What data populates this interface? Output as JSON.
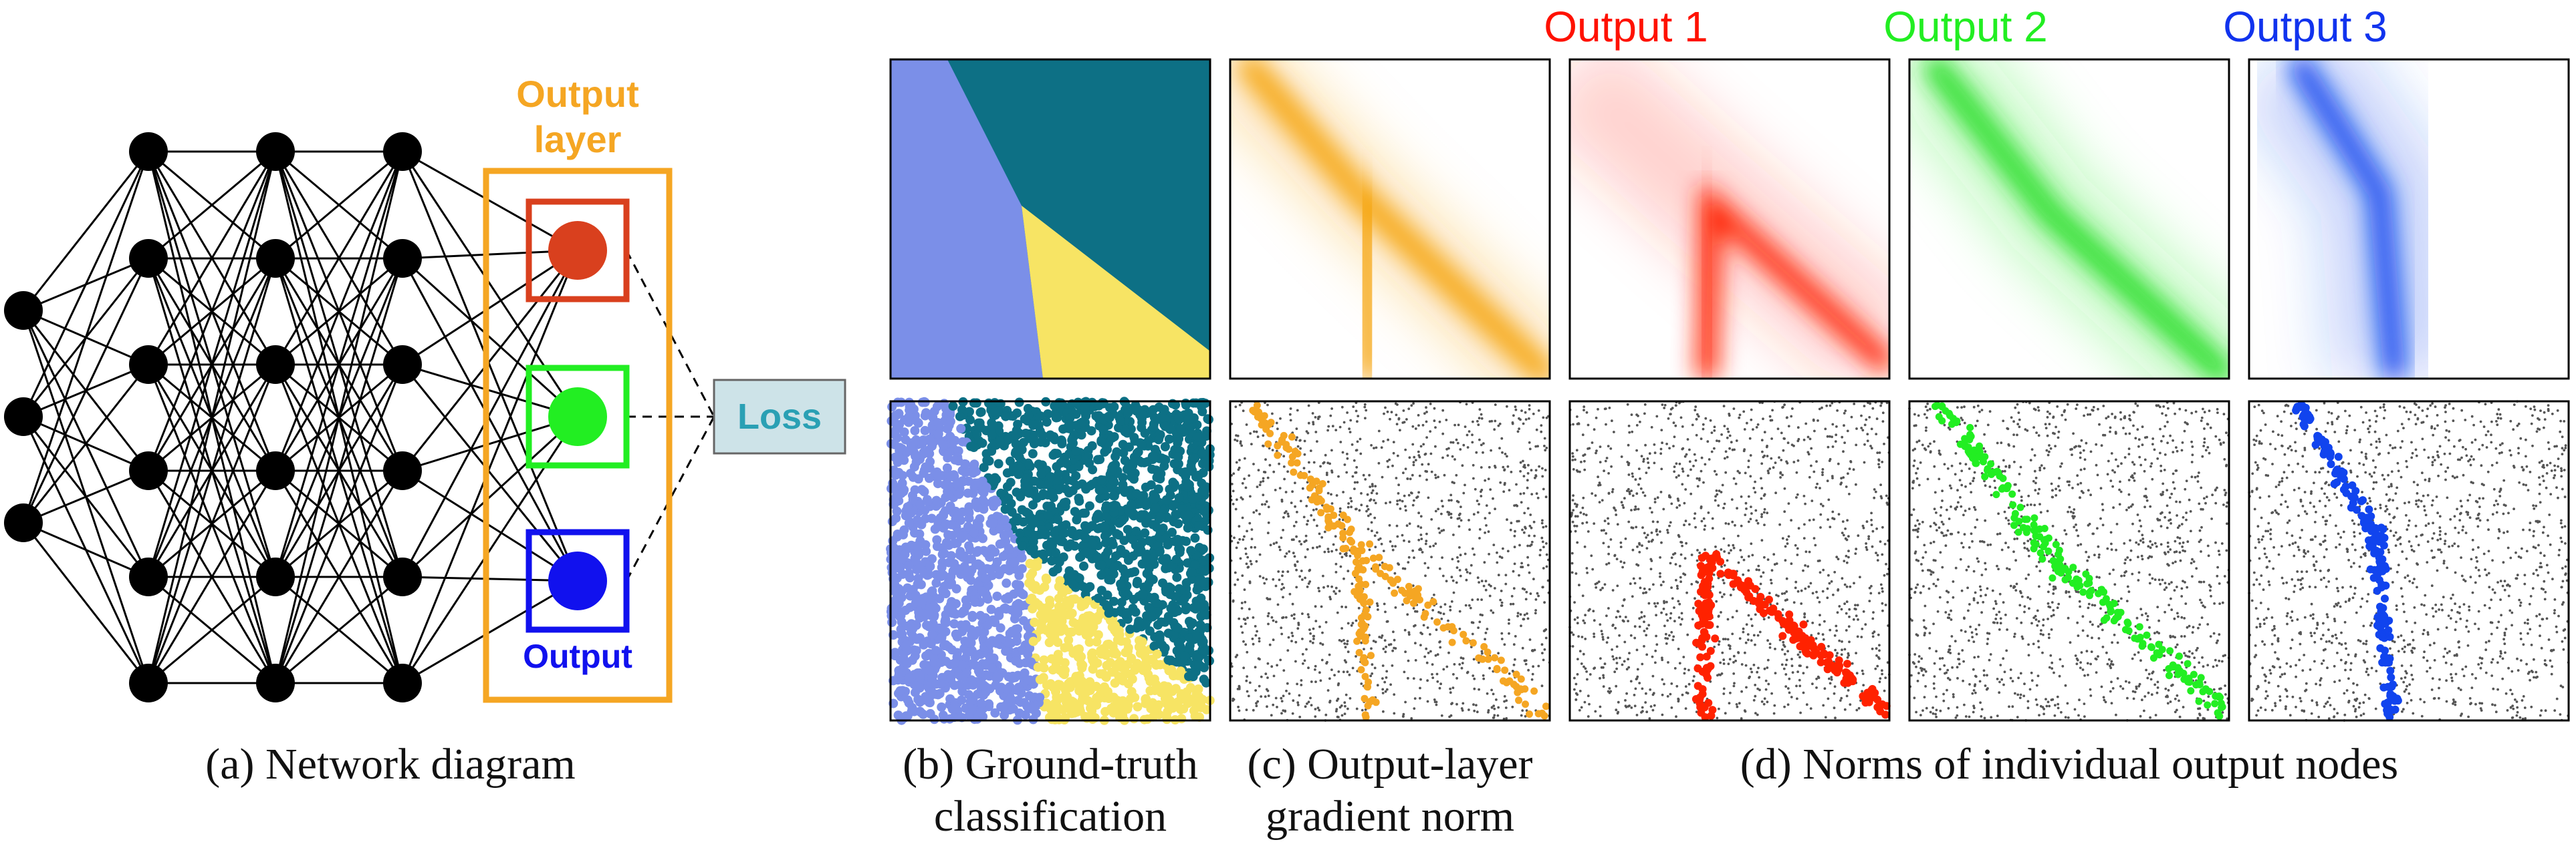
{
  "diagram": {
    "output_layer_title_line1": "Output",
    "output_layer_title_line2": "layer",
    "output_label": "Output",
    "loss_label": "Loss"
  },
  "headers": [
    "Output 1",
    "Output 2",
    "Output 3"
  ],
  "captions": {
    "a": "(a) Network diagram",
    "b_line1": "(b) Ground-truth",
    "b_line2": "classification",
    "c_line1": "(c) Output-layer",
    "c_line2": "gradient norm",
    "d": "(d) Norms of individual output nodes"
  },
  "colors": {
    "orange": "#f5a623",
    "red": "#ff2200",
    "green": "#22ee22",
    "blue": "#1144ee",
    "class_blue": "#7b8fe8",
    "class_teal": "#0d7085",
    "class_yellow": "#f7e464",
    "loss_box": "#cde3e8",
    "loss_text": "#2aa0b4",
    "output_node_red": "#d9401e"
  }
}
